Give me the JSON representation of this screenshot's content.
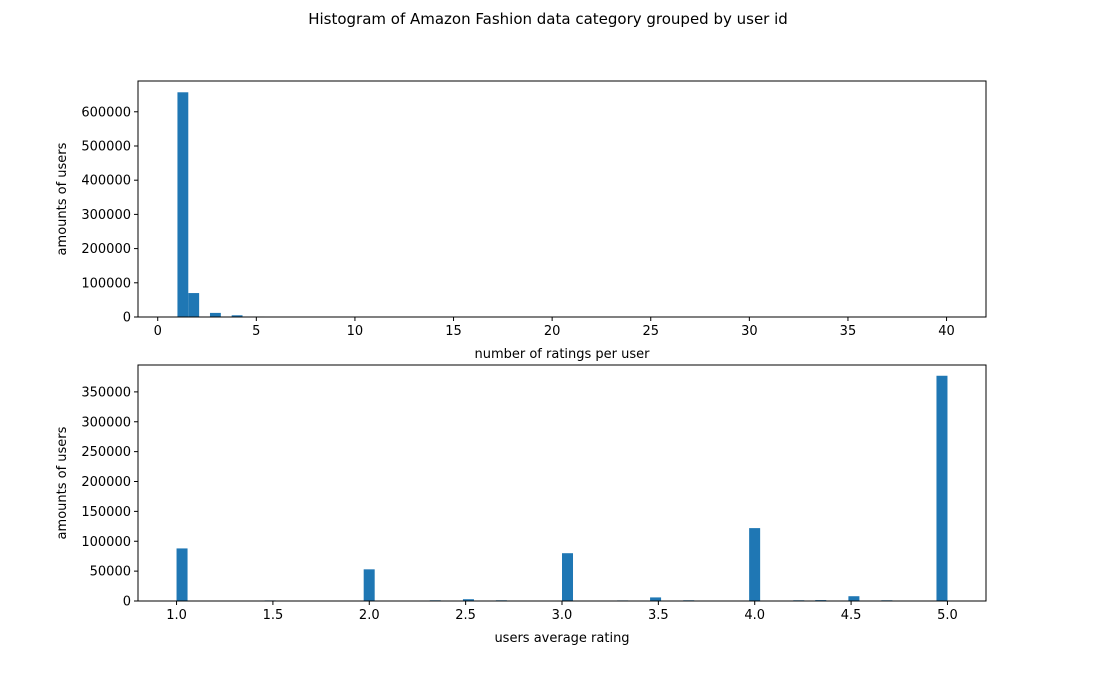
{
  "figure": {
    "suptitle": "Histogram of Amazon Fashion data category grouped by user id",
    "bar_color": "#1f77b4"
  },
  "chart_data": [
    {
      "type": "bar",
      "title": "",
      "xlabel": "number of ratings per user",
      "ylabel": "amounts of users",
      "xlim": [
        -1,
        42
      ],
      "ylim": [
        0,
        690000
      ],
      "xticks": [
        0,
        5,
        10,
        15,
        20,
        25,
        30,
        35,
        40
      ],
      "xtick_labels": [
        "0",
        "5",
        "10",
        "15",
        "20",
        "25",
        "30",
        "35",
        "40"
      ],
      "yticks": [
        0,
        100000,
        200000,
        300000,
        400000,
        500000,
        600000
      ],
      "ytick_labels": [
        "0",
        "100000",
        "200000",
        "300000",
        "400000",
        "500000",
        "600000"
      ],
      "bin_width": 0.55,
      "bars": [
        {
          "x": 1.0,
          "value": 657000
        },
        {
          "x": 1.55,
          "value": 70000
        },
        {
          "x": 2.65,
          "value": 12000
        },
        {
          "x": 3.75,
          "value": 5000
        },
        {
          "x": 4.85,
          "value": 1500
        },
        {
          "x": 5.95,
          "value": 700
        },
        {
          "x": 7.05,
          "value": 300
        }
      ],
      "grid": false,
      "legend": "none"
    },
    {
      "type": "bar",
      "title": "",
      "xlabel": "users average rating",
      "ylabel": "amounts of users",
      "xlim": [
        0.8,
        5.2
      ],
      "ylim": [
        0,
        395000
      ],
      "xticks": [
        1.0,
        1.5,
        2.0,
        2.5,
        3.0,
        3.5,
        4.0,
        4.5,
        5.0
      ],
      "xtick_labels": [
        "1.0",
        "1.5",
        "2.0",
        "2.5",
        "3.0",
        "3.5",
        "4.0",
        "4.5",
        "5.0"
      ],
      "yticks": [
        0,
        50000,
        100000,
        150000,
        200000,
        250000,
        300000,
        350000
      ],
      "ytick_labels": [
        "0",
        "50000",
        "100000",
        "150000",
        "200000",
        "250000",
        "300000",
        "350000"
      ],
      "bin_width": 0.0571,
      "bars": [
        {
          "x": 1.0,
          "value": 88000
        },
        {
          "x": 1.457,
          "value": 1000
        },
        {
          "x": 1.971,
          "value": 53000
        },
        {
          "x": 2.314,
          "value": 1200
        },
        {
          "x": 2.486,
          "value": 3000
        },
        {
          "x": 2.657,
          "value": 1200
        },
        {
          "x": 3.0,
          "value": 80000
        },
        {
          "x": 3.286,
          "value": 1000
        },
        {
          "x": 3.457,
          "value": 6000
        },
        {
          "x": 3.629,
          "value": 1200
        },
        {
          "x": 3.971,
          "value": 122000
        },
        {
          "x": 4.2,
          "value": 1200
        },
        {
          "x": 4.314,
          "value": 1500
        },
        {
          "x": 4.486,
          "value": 8000
        },
        {
          "x": 4.657,
          "value": 1200
        },
        {
          "x": 4.943,
          "value": 377000
        }
      ],
      "grid": false,
      "legend": "none"
    }
  ]
}
